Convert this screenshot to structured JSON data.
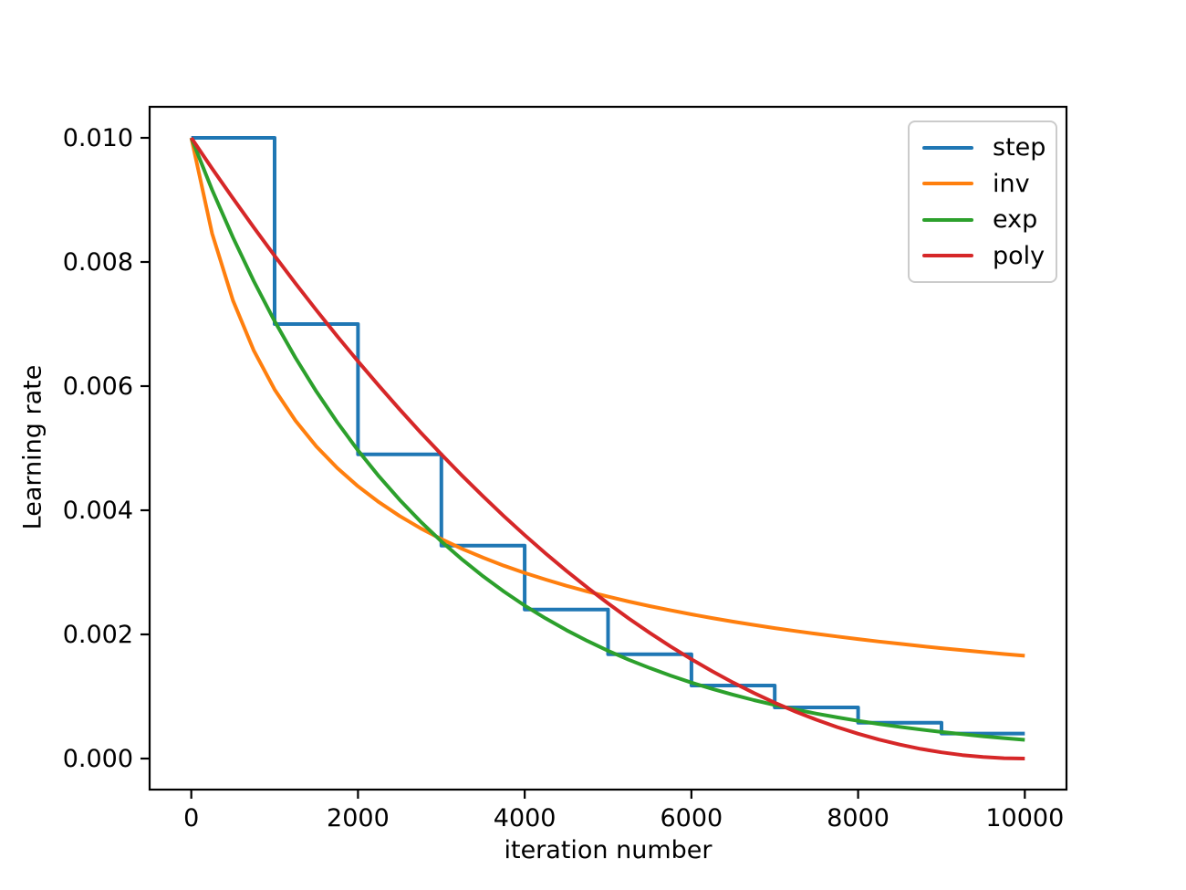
{
  "figure": {
    "background": "#ffffff",
    "text_color": "#000000",
    "spine_color": "#000000",
    "legend": {
      "position": "upper right",
      "border_color": "#cbcbcb"
    },
    "axes": {
      "x_tick_labels": [
        "0",
        "2000",
        "4000",
        "6000",
        "8000",
        "10000"
      ],
      "x_tick_values": [
        0,
        2000,
        4000,
        6000,
        8000,
        10000
      ],
      "y_tick_labels": [
        "0.000",
        "0.002",
        "0.004",
        "0.006",
        "0.008",
        "0.010"
      ],
      "y_tick_values": [
        0,
        0.002,
        0.004,
        0.006,
        0.008,
        0.01
      ]
    }
  },
  "chart_data": {
    "type": "line",
    "title": "",
    "xlabel": "iteration number",
    "ylabel": "Learning rate",
    "xlim": [
      0,
      10000
    ],
    "ylim": [
      0,
      0.01
    ],
    "margin_fraction": 0.05,
    "grid": false,
    "legend_position": "upper right",
    "x": [
      0,
      250,
      500,
      750,
      1000,
      1250,
      1500,
      1750,
      2000,
      2250,
      2500,
      2750,
      3000,
      3250,
      3500,
      3750,
      4000,
      4250,
      4500,
      4750,
      5000,
      5250,
      5500,
      5750,
      6000,
      6250,
      6500,
      6750,
      7000,
      7250,
      7500,
      7750,
      8000,
      8250,
      8500,
      8750,
      9000,
      9250,
      9500,
      9750,
      10000
    ],
    "series": [
      {
        "name": "step",
        "color": "#1f77b4",
        "points": [
          [
            0,
            0.01
          ],
          [
            1000,
            0.01
          ],
          [
            1000,
            0.007
          ],
          [
            2000,
            0.007
          ],
          [
            2000,
            0.0049
          ],
          [
            3000,
            0.0049
          ],
          [
            3000,
            0.00343
          ],
          [
            4000,
            0.00343
          ],
          [
            4000,
            0.002401
          ],
          [
            5000,
            0.002401
          ],
          [
            5000,
            0.0016807
          ],
          [
            6000,
            0.0016807
          ],
          [
            6000,
            0.0011765
          ],
          [
            7000,
            0.0011765
          ],
          [
            7000,
            0.0008235
          ],
          [
            8000,
            0.0008235
          ],
          [
            8000,
            0.0005765
          ],
          [
            9000,
            0.0005765
          ],
          [
            9000,
            0.0004035
          ],
          [
            10000,
            0.0004035
          ]
        ]
      },
      {
        "name": "inv",
        "color": "#ff7f0e",
        "values": [
          0.01,
          0.0084591,
          0.0073779,
          0.0065724,
          0.005946,
          0.0054433,
          0.0050297,
          0.0046827,
          0.0043869,
          0.0041313,
          0.0039079,
          0.0037108,
          0.0035355,
          0.0033784,
          0.0032366,
          0.003108,
          0.0029907,
          0.0028832,
          0.0027844,
          0.0026931,
          0.0026085,
          0.0025298,
          0.0024565,
          0.0023879,
          0.0023236,
          0.0022633,
          0.0022064,
          0.0021528,
          0.0021022,
          0.0020543,
          0.0020088,
          0.0019656,
          0.0019245,
          0.0018854,
          0.001848,
          0.0018124,
          0.0017783,
          0.0017456,
          0.0017144,
          0.0016844,
          0.0016556
        ]
      },
      {
        "name": "exp",
        "color": "#2ca02c",
        "values": [
          0.01,
          0.0091621,
          0.0083943,
          0.0076909,
          0.0070465,
          0.006456,
          0.0059151,
          0.0054194,
          0.0049653,
          0.0045492,
          0.004168,
          0.0038187,
          0.0034987,
          0.0032056,
          0.0029369,
          0.0026909,
          0.0024654,
          0.0022588,
          0.0020695,
          0.0018961,
          0.0017372,
          0.0015917,
          0.0014583,
          0.0013361,
          0.0012241,
          0.0011216,
          0.0010276,
          0.0009415,
          0.0008626,
          0.0007903,
          0.0007241,
          0.0006634,
          0.0006078,
          0.0005569,
          0.0005102,
          0.0004675,
          0.0004283,
          0.0003924,
          0.0003595,
          0.0003294,
          0.0003018
        ]
      },
      {
        "name": "poly",
        "color": "#d62728",
        "values": [
          0.01,
          0.0095063,
          0.009025,
          0.0085563,
          0.0081,
          0.0076563,
          0.007225,
          0.0068063,
          0.0064,
          0.0060063,
          0.005625,
          0.0052563,
          0.0049,
          0.0045563,
          0.004225,
          0.0039063,
          0.0036,
          0.0033063,
          0.003025,
          0.0027563,
          0.0025,
          0.0022563,
          0.002025,
          0.0018063,
          0.0016,
          0.0014063,
          0.001225,
          0.0010563,
          0.0009,
          0.0007563,
          0.000625,
          0.0005063,
          0.0004,
          0.0003063,
          0.000225,
          0.0001563,
          0.0001,
          5.63e-05,
          2.5e-05,
          6.3e-06,
          0.0
        ]
      }
    ]
  }
}
